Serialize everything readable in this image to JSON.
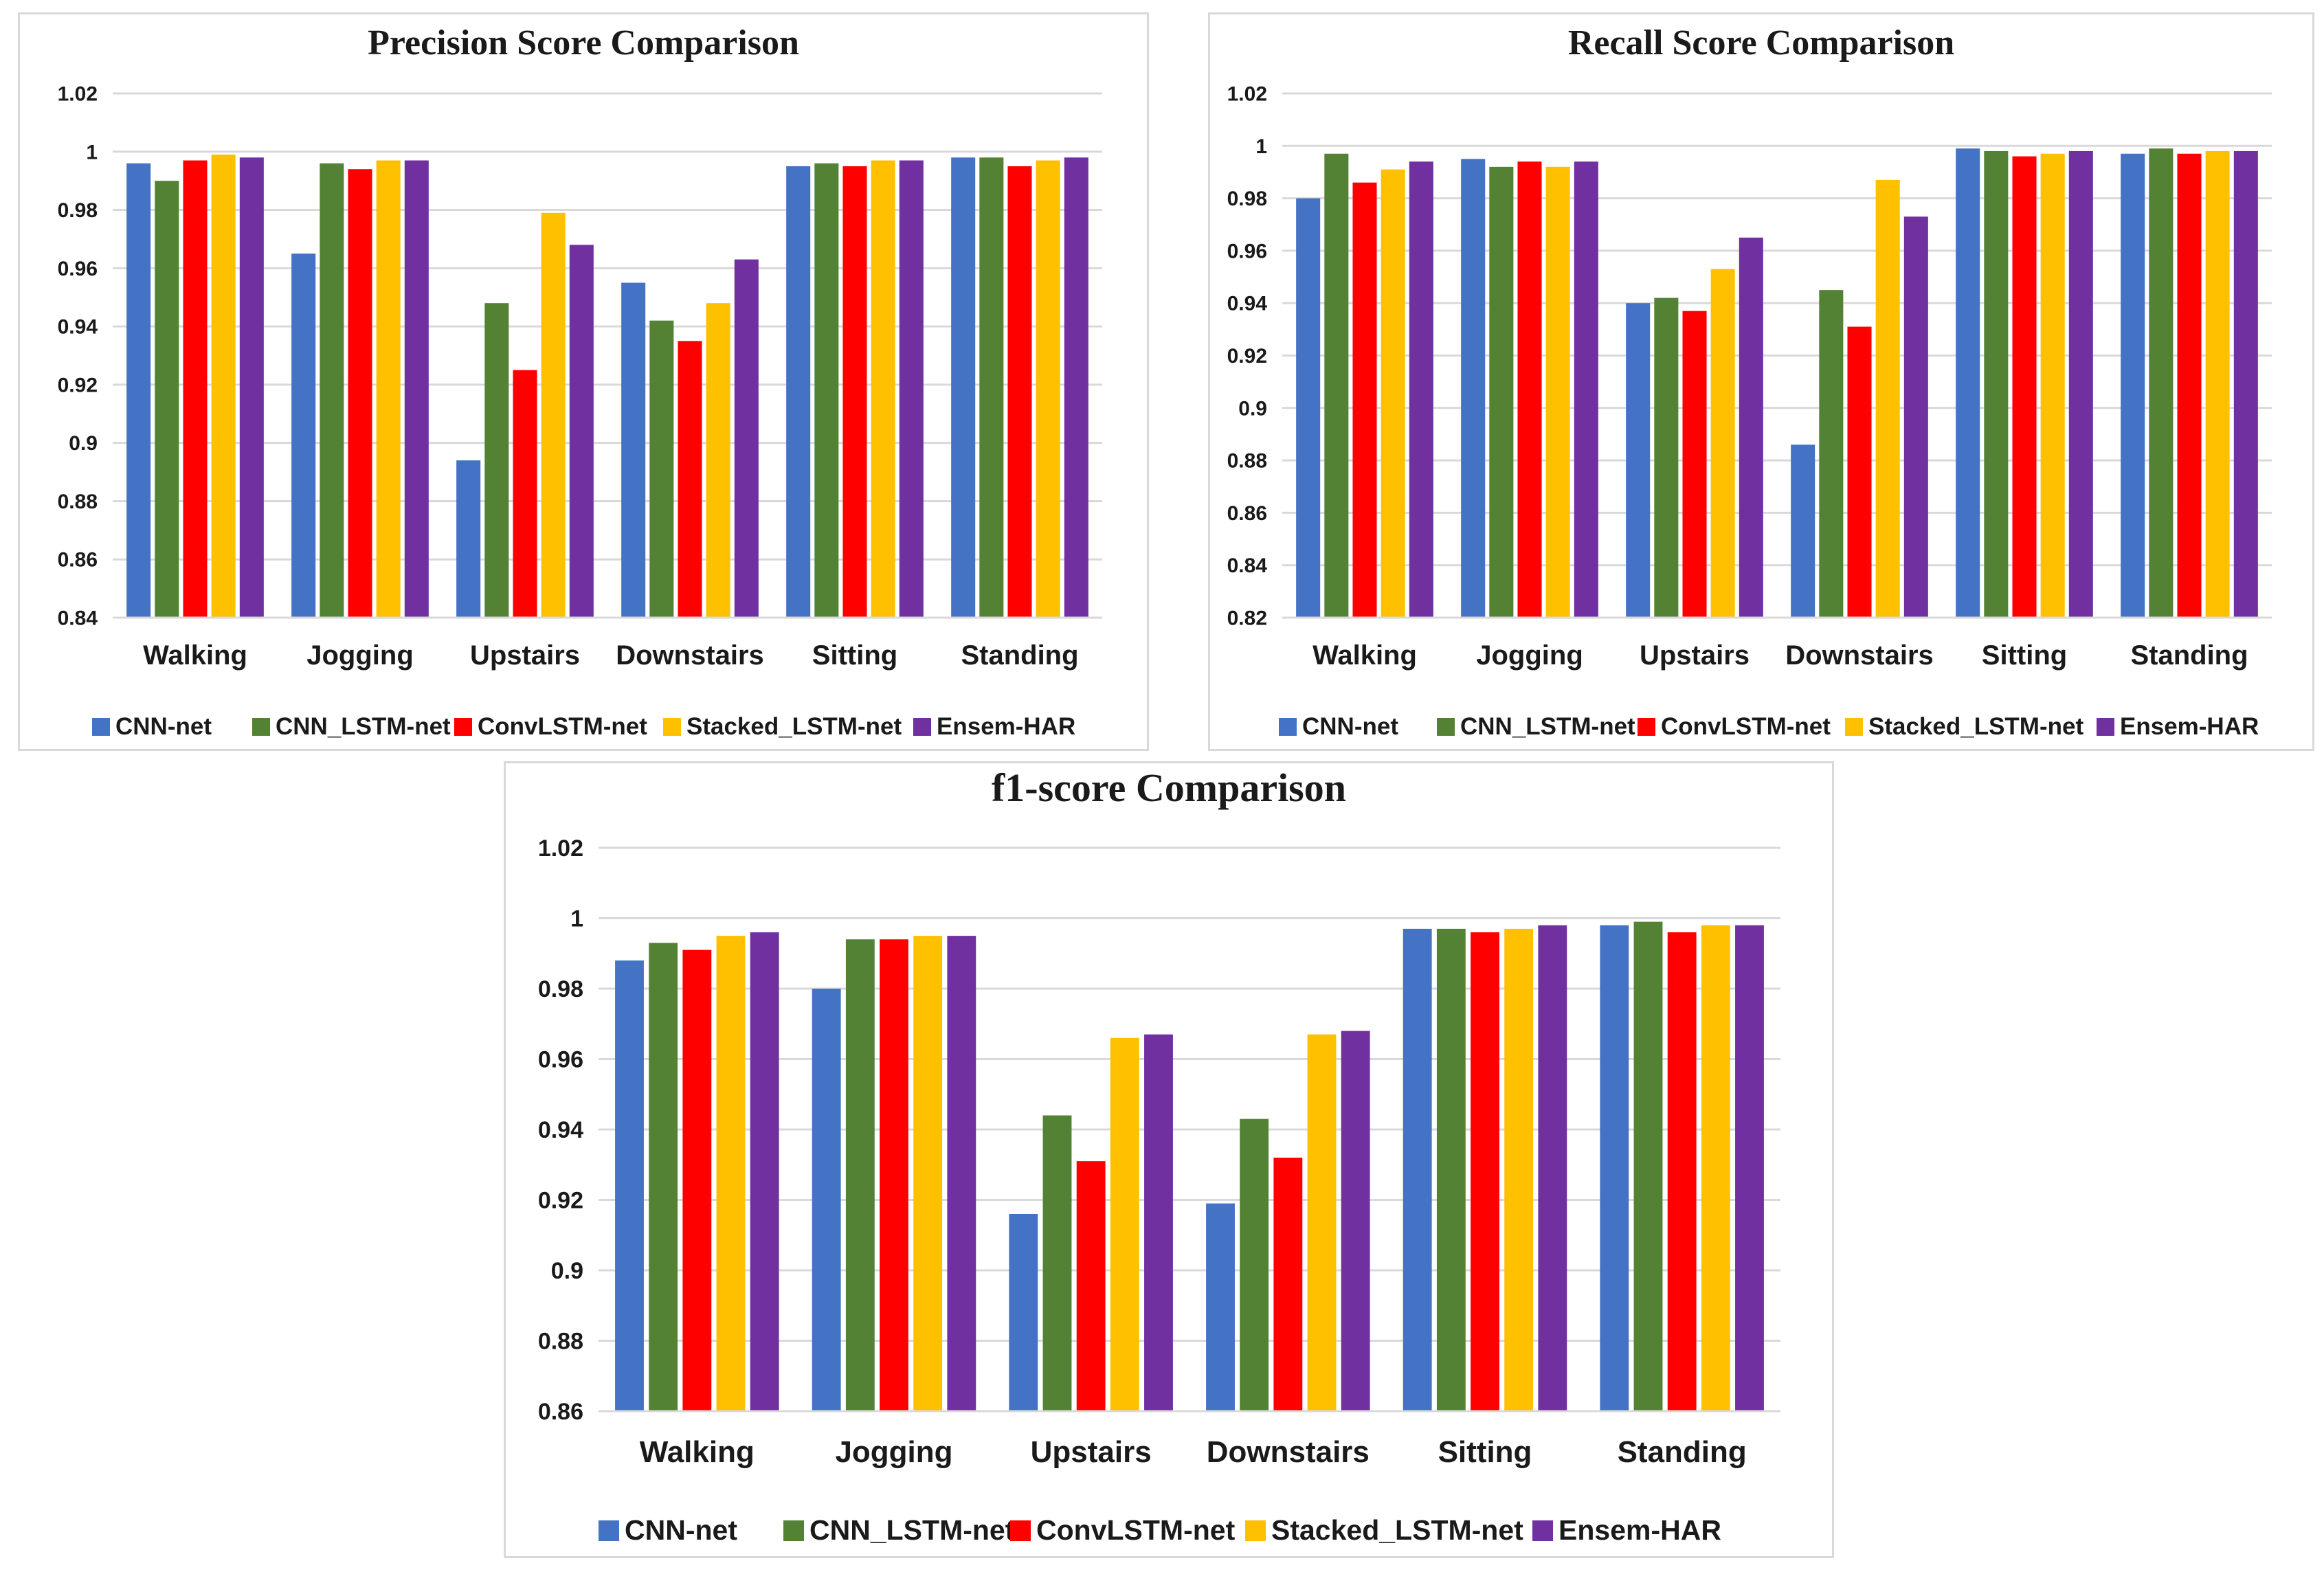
{
  "chart_data": [
    {
      "type": "bar",
      "title": "Precision  Score Comparison",
      "categories": [
        "Walking",
        "Jogging",
        "Upstairs",
        "Downstairs",
        "Sitting",
        "Standing"
      ],
      "ylim": [
        0.84,
        1.02
      ],
      "yticks": [
        "0.84",
        "0.86",
        "0.88",
        "0.9",
        "0.92",
        "0.94",
        "0.96",
        "0.98",
        "1",
        "1.02"
      ],
      "grid": true,
      "legend_position": "bottom",
      "series": [
        {
          "name": "CNN-net",
          "color": "#4472C4",
          "values": [
            0.996,
            0.965,
            0.894,
            0.955,
            0.995,
            0.998
          ]
        },
        {
          "name": "CNN_LSTM-net",
          "color": "#548235",
          "values": [
            0.99,
            0.996,
            0.948,
            0.942,
            0.996,
            0.998
          ]
        },
        {
          "name": "ConvLSTM-net",
          "color": "#FF0000",
          "values": [
            0.997,
            0.994,
            0.925,
            0.935,
            0.995,
            0.995
          ]
        },
        {
          "name": "Stacked_LSTM-net",
          "color": "#FFC000",
          "values": [
            0.999,
            0.997,
            0.979,
            0.948,
            0.997,
            0.997
          ]
        },
        {
          "name": "Ensem-HAR",
          "color": "#7030A0",
          "values": [
            0.998,
            0.997,
            0.968,
            0.963,
            0.997,
            0.998
          ]
        }
      ]
    },
    {
      "type": "bar",
      "title": "Recall Score Comparison",
      "categories": [
        "Walking",
        "Jogging",
        "Upstairs",
        "Downstairs",
        "Sitting",
        "Standing"
      ],
      "ylim": [
        0.82,
        1.02
      ],
      "yticks": [
        "0.82",
        "0.84",
        "0.86",
        "0.88",
        "0.9",
        "0.92",
        "0.94",
        "0.96",
        "0.98",
        "1",
        "1.02"
      ],
      "grid": true,
      "legend_position": "bottom",
      "series": [
        {
          "name": "CNN-net",
          "color": "#4472C4",
          "values": [
            0.98,
            0.995,
            0.94,
            0.886,
            0.999,
            0.997
          ]
        },
        {
          "name": "CNN_LSTM-net",
          "color": "#548235",
          "values": [
            0.997,
            0.992,
            0.942,
            0.945,
            0.998,
            0.999
          ]
        },
        {
          "name": "ConvLSTM-net",
          "color": "#FF0000",
          "values": [
            0.986,
            0.994,
            0.937,
            0.931,
            0.996,
            0.997
          ]
        },
        {
          "name": "Stacked_LSTM-net",
          "color": "#FFC000",
          "values": [
            0.991,
            0.992,
            0.953,
            0.987,
            0.997,
            0.998
          ]
        },
        {
          "name": "Ensem-HAR",
          "color": "#7030A0",
          "values": [
            0.994,
            0.994,
            0.965,
            0.973,
            0.998,
            0.998
          ]
        }
      ]
    },
    {
      "type": "bar",
      "title": "f1-score Comparison",
      "categories": [
        "Walking",
        "Jogging",
        "Upstairs",
        "Downstairs",
        "Sitting",
        "Standing"
      ],
      "ylim": [
        0.86,
        1.02
      ],
      "yticks": [
        "0.86",
        "0.88",
        "0.9",
        "0.92",
        "0.94",
        "0.96",
        "0.98",
        "1",
        "1.02"
      ],
      "grid": true,
      "legend_position": "bottom",
      "series": [
        {
          "name": "CNN-net",
          "color": "#4472C4",
          "values": [
            0.988,
            0.98,
            0.916,
            0.919,
            0.997,
            0.998
          ]
        },
        {
          "name": "CNN_LSTM-net",
          "color": "#548235",
          "values": [
            0.993,
            0.994,
            0.944,
            0.943,
            0.997,
            0.999
          ]
        },
        {
          "name": "ConvLSTM-net",
          "color": "#FF0000",
          "values": [
            0.991,
            0.994,
            0.931,
            0.932,
            0.996,
            0.996
          ]
        },
        {
          "name": "Stacked_LSTM-net",
          "color": "#FFC000",
          "values": [
            0.995,
            0.995,
            0.966,
            0.967,
            0.997,
            0.998
          ]
        },
        {
          "name": "Ensem-HAR",
          "color": "#7030A0",
          "values": [
            0.996,
            0.995,
            0.967,
            0.968,
            0.998,
            0.998
          ]
        }
      ]
    }
  ]
}
